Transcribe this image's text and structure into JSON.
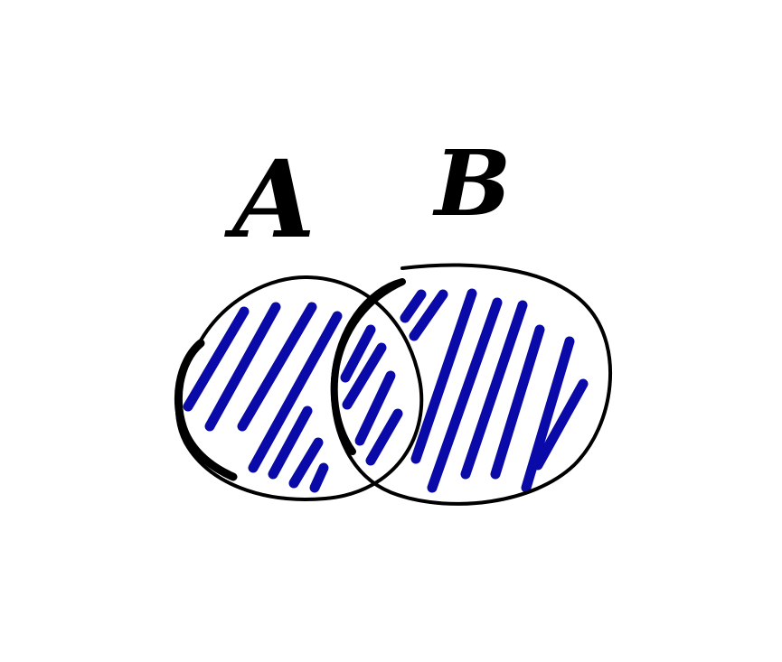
{
  "diagram": {
    "type": "venn",
    "sets": [
      {
        "label": "A",
        "shaded": true
      },
      {
        "label": "B",
        "shaded": true
      }
    ],
    "shaded_region": "A ∪ B",
    "colors": {
      "outline": "#000000",
      "shading": "#0a0aa8",
      "background": "#ffffff"
    }
  }
}
